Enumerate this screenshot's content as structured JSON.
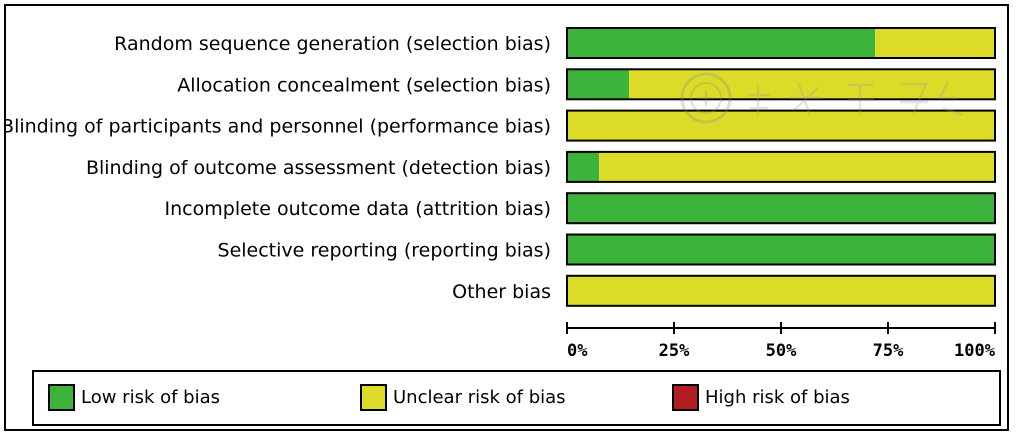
{
  "chart_data": {
    "type": "bar",
    "orientation": "horizontal",
    "stacked": true,
    "categories": [
      "Random sequence generation (selection bias)",
      "Allocation concealment (selection bias)",
      "Blinding of participants and personnel (performance bias)",
      "Blinding of outcome assessment (detection bias)",
      "Incomplete outcome data (attrition bias)",
      "Selective reporting (reporting bias)",
      "Other bias"
    ],
    "series": [
      {
        "name": "Low risk of bias",
        "color": "#3cb43c",
        "values": [
          72,
          14.5,
          0,
          7.5,
          100,
          100,
          0
        ]
      },
      {
        "name": "Unclear risk of bias",
        "color": "#dcdc28",
        "values": [
          28,
          85.5,
          100,
          92.5,
          0,
          0,
          100
        ]
      },
      {
        "name": "High risk of bias",
        "color": "#b41e23",
        "values": [
          0,
          0,
          0,
          0,
          0,
          0,
          0
        ]
      }
    ],
    "xlim": [
      0,
      100
    ],
    "xticks": [
      "0%",
      "25%",
      "50%",
      "75%",
      "100%"
    ],
    "legend_position": "bottom",
    "grid": false
  },
  "legend": {
    "low": "Low risk of bias",
    "unclear": "Unclear risk of bias",
    "high": "High risk of bias"
  },
  "colors": {
    "low": "#3cb43c",
    "unclear": "#dcdc28",
    "high": "#b41e23"
  },
  "watermark": {
    "icon": "emblem-icon"
  }
}
